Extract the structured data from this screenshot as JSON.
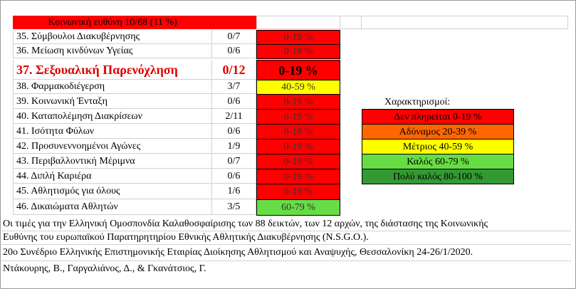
{
  "title": "Κοινωνική  ευθύνη  10/88 (11 %)",
  "rows": [
    {
      "name": "35. Σύμβουλοι Διακυβέρνησης",
      "score": "0/7",
      "rating": "0-19 %"
    },
    {
      "name": "36. Μείωση κινδύνων Υγείας",
      "score": "0/6",
      "rating": "0-19 %"
    },
    {
      "name": "37. Σεξουαλική Παρενόχληση",
      "score": "0/12",
      "rating": "0-19 %"
    },
    {
      "name": "38. Φαρμακοδιέγερση",
      "score": "3/7",
      "rating": "40-59 %"
    },
    {
      "name": "39. Κοινωνική Ένταξη",
      "score": "0/6",
      "rating": "0-19 %"
    },
    {
      "name": "40. Καταπολέμηση Διακρίσεων",
      "score": "2/11",
      "rating": "0-19 %"
    },
    {
      "name": "41. Ισότητα Φύλων",
      "score": "0/6",
      "rating": "0-19 %"
    },
    {
      "name": "42. Προσυνεννοημένοι Αγώνες",
      "score": "1/9",
      "rating": "0-19 %"
    },
    {
      "name": "43. Περιβαλλοντική Μέριμνα",
      "score": "0/7",
      "rating": "0-19 %"
    },
    {
      "name": "44. Διπλή Καριέρα",
      "score": "0/6",
      "rating": "0-19 %"
    },
    {
      "name": "45. Αθλητισμός για όλους",
      "score": "1/6",
      "rating": "0-19 %"
    },
    {
      "name": "46. Δικαιώματα Αθλητών",
      "score": "3/5",
      "rating": "60-79 %"
    }
  ],
  "legend": {
    "title": "Χαρακτηρισμοί:",
    "items": [
      {
        "label": "Δεν πληρείται   0-19 %",
        "color": "#ff0000"
      },
      {
        "label": "Αδύναμος   20-39 %",
        "color": "#ff6600"
      },
      {
        "label": "Μέτριος   40-59 %",
        "color": "#ffff00"
      },
      {
        "label": "Καλός   60-79 %",
        "color": "#66dd44"
      },
      {
        "label": "Πολύ καλός   80-100 %",
        "color": "#339933"
      }
    ]
  },
  "notes": [
    "Οι τιμές για την Ελληνική Ομοσπονδία Καλαθοσφαίρισης των 88 δεικτών, των 12 αρχών, της διάστασης της Κοινωνικής",
    "Ευθύνης του ευρωπαϊκού Παρατηρητηρίου Εθνικής Αθλητικής Διακυβέρνησης (N.S.G.O.).",
    "20ο Συνέδριο Ελληνικής Επιστημονικής Εταιρίας Διοίκησης Αθλητισμού και Αναψυχής, Θεσσαλονίκη 24-26/1/2020.",
    "Ντάκουρης, Β., Γαργαλιάνος, Δ., & Γκανάτσιος, Γ."
  ]
}
